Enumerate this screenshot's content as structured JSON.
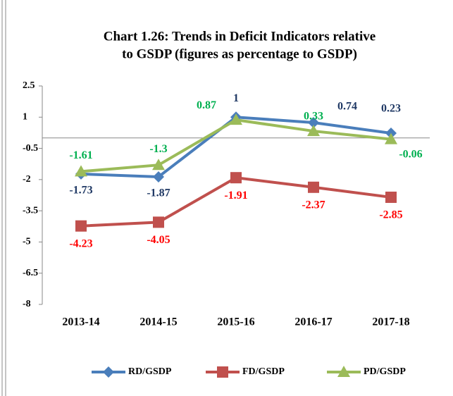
{
  "chart_data": {
    "type": "line",
    "title": [
      "Chart 1.26: Trends in Deficit Indicators relative",
      "to GSDP (figures as percentage to GSDP)"
    ],
    "categories": [
      "2013-14",
      "2014-15",
      "2015-16",
      "2016-17",
      "2017-18"
    ],
    "series": [
      {
        "name": "RD/GSDP",
        "color": "#4a7ebb",
        "label_color": "#1f3864",
        "marker": "diamond",
        "values": [
          -1.73,
          -1.87,
          1,
          0.74,
          0.23
        ]
      },
      {
        "name": "FD/GSDP",
        "color": "#c0504d",
        "label_color": "#ff0000",
        "marker": "square",
        "values": [
          -4.23,
          -4.05,
          -1.91,
          -2.37,
          -2.85
        ]
      },
      {
        "name": "PD/GSDP",
        "color": "#9bbb59",
        "label_color": "#00b050",
        "marker": "triangle",
        "values": [
          -1.61,
          -1.3,
          0.87,
          0.33,
          -0.06
        ]
      }
    ],
    "ylim": [
      -8,
      2.5
    ],
    "yticks": [
      2.5,
      1,
      -0.5,
      -2,
      -3.5,
      -5,
      -6.5,
      -8
    ],
    "legend": "bottom"
  }
}
